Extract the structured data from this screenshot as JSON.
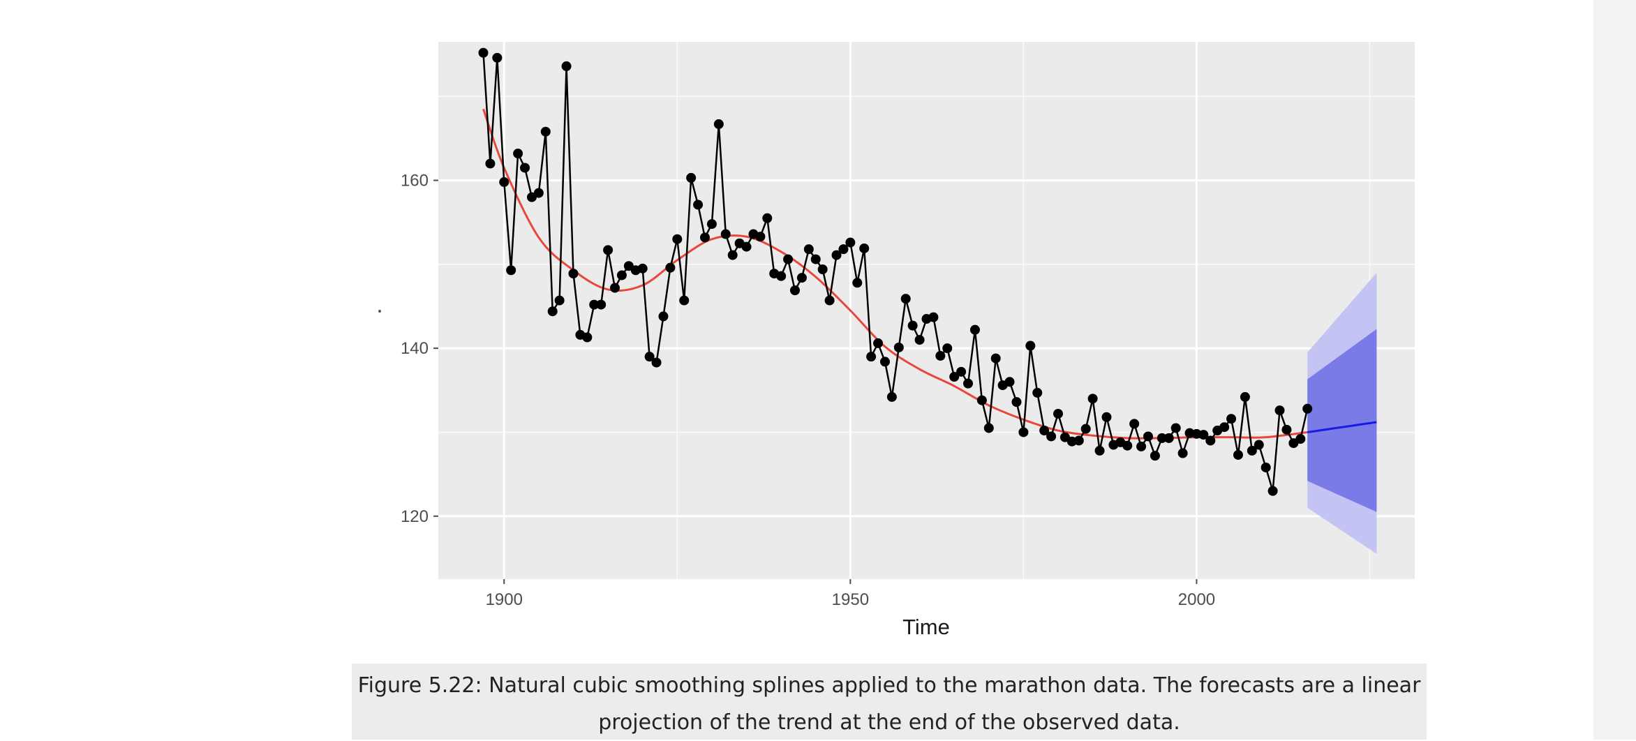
{
  "chart_data": {
    "type": "line",
    "title": "",
    "xlabel": "Time",
    "ylabel": "",
    "xlim": [
      1890.5,
      2031.5
    ],
    "ylim": [
      112.5,
      176.5
    ],
    "x_ticks": [
      1900,
      1950,
      2000
    ],
    "y_ticks": [
      120,
      140,
      160
    ],
    "grid": true,
    "background": "#ebebeb",
    "colors": {
      "observed": "#000000",
      "trend": "#e8473a",
      "forecast": "#1a1ae0",
      "band80": "#7b7be8",
      "band95": "#c4c4f4"
    },
    "series": [
      {
        "x": [
          1897,
          1898,
          1899,
          1900,
          1901,
          1902,
          1903,
          1904,
          1905,
          1906,
          1907,
          1908,
          1909,
          1910,
          1911,
          1912,
          1913,
          1914,
          1915,
          1916,
          1917,
          1918,
          1919,
          1920,
          1921,
          1922,
          1923,
          1924,
          1925,
          1926,
          1927,
          1928,
          1929,
          1930,
          1931,
          1932,
          1933,
          1934,
          1935,
          1936,
          1937,
          1938,
          1939,
          1940,
          1941,
          1942,
          1943,
          1944,
          1945,
          1946,
          1947,
          1948,
          1949,
          1950,
          1951,
          1952,
          1953,
          1954,
          1955,
          1956,
          1957,
          1958,
          1959,
          1960,
          1961,
          1962,
          1963,
          1964,
          1965,
          1966,
          1967,
          1968,
          1969,
          1970,
          1971,
          1972,
          1973,
          1974,
          1975,
          1976,
          1977,
          1978,
          1979,
          1980,
          1981,
          1982,
          1983,
          1984,
          1985,
          1986,
          1987,
          1988,
          1989,
          1990,
          1991,
          1992,
          1993,
          1994,
          1995,
          1996,
          1997,
          1998,
          1999,
          2000,
          2001,
          2002,
          2003,
          2004,
          2005,
          2006,
          2007,
          2008,
          2009,
          2010,
          2011,
          2012,
          2013,
          2014,
          2015,
          2016
        ],
        "y": [
          175.2,
          162.0,
          174.6,
          159.8,
          149.3,
          163.2,
          161.5,
          158.0,
          158.5,
          165.8,
          144.4,
          145.7,
          173.6,
          148.9,
          141.6,
          141.3,
          145.2,
          145.2,
          151.7,
          147.2,
          148.7,
          149.8,
          149.3,
          149.5,
          139.0,
          138.3,
          143.8,
          149.6,
          153.0,
          145.7,
          160.3,
          157.1,
          153.2,
          154.8,
          166.7,
          153.6,
          151.1,
          152.5,
          152.1,
          153.6,
          153.3,
          155.5,
          148.9,
          148.6,
          150.6,
          146.9,
          148.4,
          151.8,
          150.6,
          149.4,
          145.7,
          151.1,
          151.8,
          152.6,
          147.8,
          151.9,
          139.0,
          140.6,
          138.4,
          134.2,
          140.1,
          145.9,
          142.7,
          141.0,
          143.5,
          143.7,
          139.1,
          140.0,
          136.6,
          137.2,
          135.8,
          142.2,
          133.8,
          130.5,
          138.8,
          135.6,
          136.0,
          133.6,
          130.0,
          140.3,
          134.7,
          130.2,
          129.5,
          132.2,
          129.4,
          128.9,
          129.0,
          130.4,
          134.0,
          127.8,
          131.8,
          128.5,
          128.8,
          128.4,
          131.0,
          128.3,
          129.5,
          127.2,
          129.3,
          129.3,
          130.5,
          127.5,
          129.9,
          129.8,
          129.7,
          129.0,
          130.2,
          130.6,
          131.6,
          127.3,
          134.2,
          127.8,
          128.5,
          125.8,
          123.0,
          132.6,
          130.3,
          128.7,
          129.2,
          132.8
        ],
        "marker": "circle"
      },
      {
        "x": [
          1897,
          1900,
          1905,
          1910,
          1915,
          1920,
          1925,
          1930,
          1935,
          1940,
          1945,
          1950,
          1955,
          1960,
          1965,
          1970,
          1975,
          1980,
          1985,
          1990,
          1995,
          2000,
          2005,
          2010,
          2016
        ],
        "y": [
          168.5,
          161.5,
          153.2,
          149.3,
          147.0,
          147.5,
          150.5,
          153.0,
          153.3,
          151.5,
          148.5,
          144.5,
          140.2,
          137.5,
          135.5,
          133.2,
          131.5,
          130.2,
          129.6,
          129.3,
          129.3,
          129.4,
          129.4,
          129.4,
          130.0
        ],
        "line_only": true
      },
      {
        "x": [
          2016,
          2026
        ],
        "y": [
          130.0,
          131.2
        ],
        "line_only": true
      }
    ],
    "intervals": [
      {
        "level": 95,
        "x": [
          2016,
          2026
        ],
        "lower": [
          121.0,
          115.5
        ],
        "upper": [
          139.5,
          149.0
        ]
      },
      {
        "level": 80,
        "x": [
          2016,
          2026
        ],
        "lower": [
          124.2,
          120.5
        ],
        "upper": [
          136.3,
          142.3
        ]
      }
    ],
    "caption": {
      "line1": "Figure 5.22: Natural cubic smoothing splines applied to the marathon data. The forecasts are a linear",
      "line2": "projection of the trend at the end of the observed data."
    }
  }
}
